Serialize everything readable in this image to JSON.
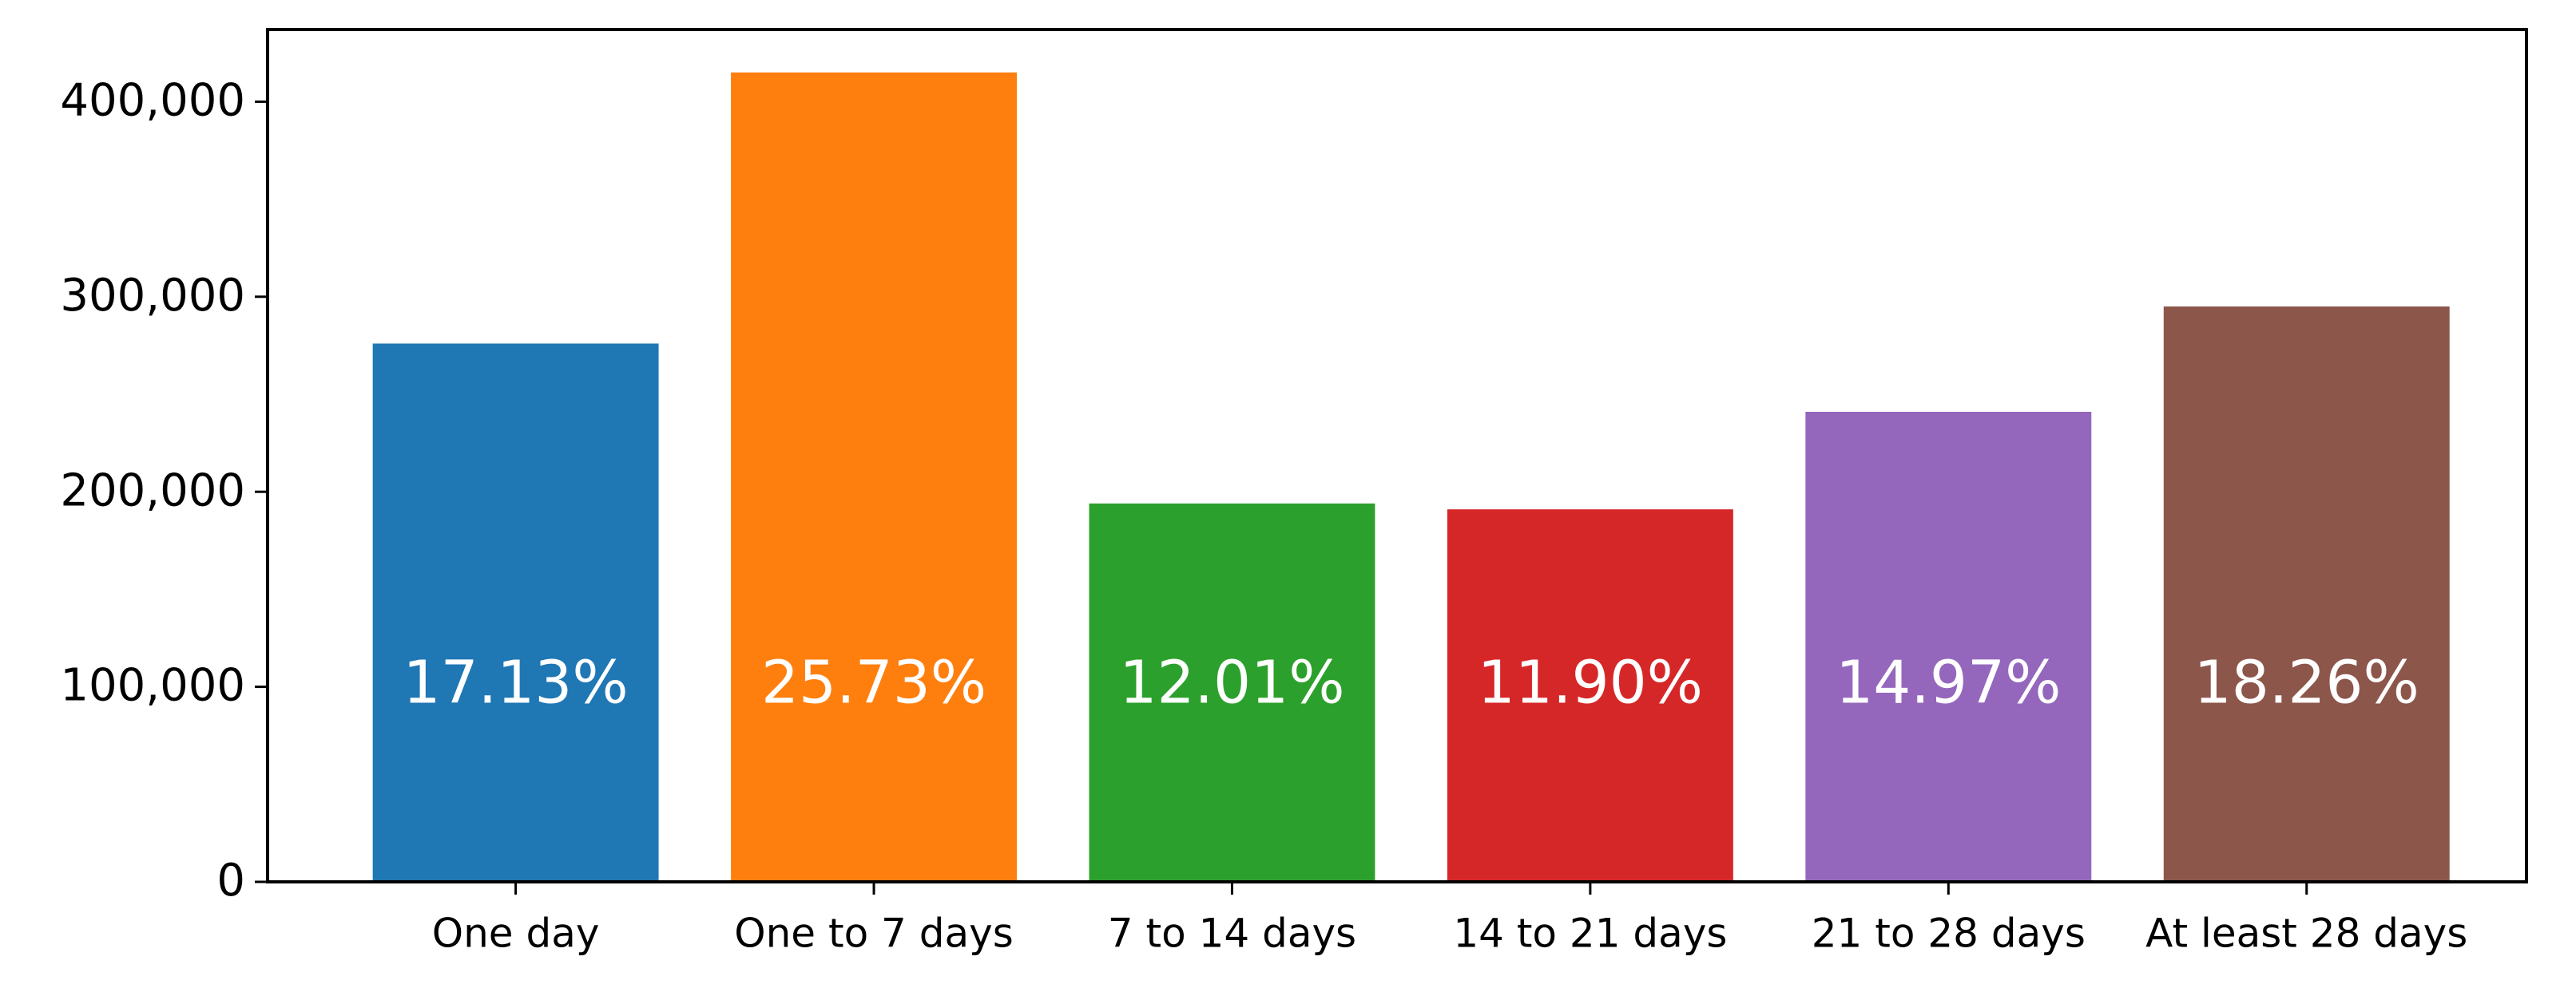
{
  "chart_data": {
    "type": "bar",
    "categories": [
      "One day",
      "One to 7 days",
      "7 to 14 days",
      "14 to 21 days",
      "21 to 28 days",
      "At least 28 days"
    ],
    "values": [
      276000,
      415000,
      194000,
      191000,
      241000,
      295000
    ],
    "bar_labels": [
      "17.13%",
      "25.73%",
      "12.01%",
      "11.90%",
      "14.97%",
      "18.26%"
    ],
    "colors": [
      "#1f77b4",
      "#ff7f0e",
      "#2ca02c",
      "#d62728",
      "#9467bd",
      "#8c564b"
    ],
    "ylim": [
      0,
      437000
    ],
    "yticks": [
      0,
      {
        "value": 100000,
        "label": "100,000"
      },
      {
        "value": 200000,
        "label": "200,000"
      },
      {
        "value": 300000,
        "label": "300,000"
      },
      {
        "value": 400000,
        "label": "400,000"
      }
    ],
    "grid": false
  }
}
